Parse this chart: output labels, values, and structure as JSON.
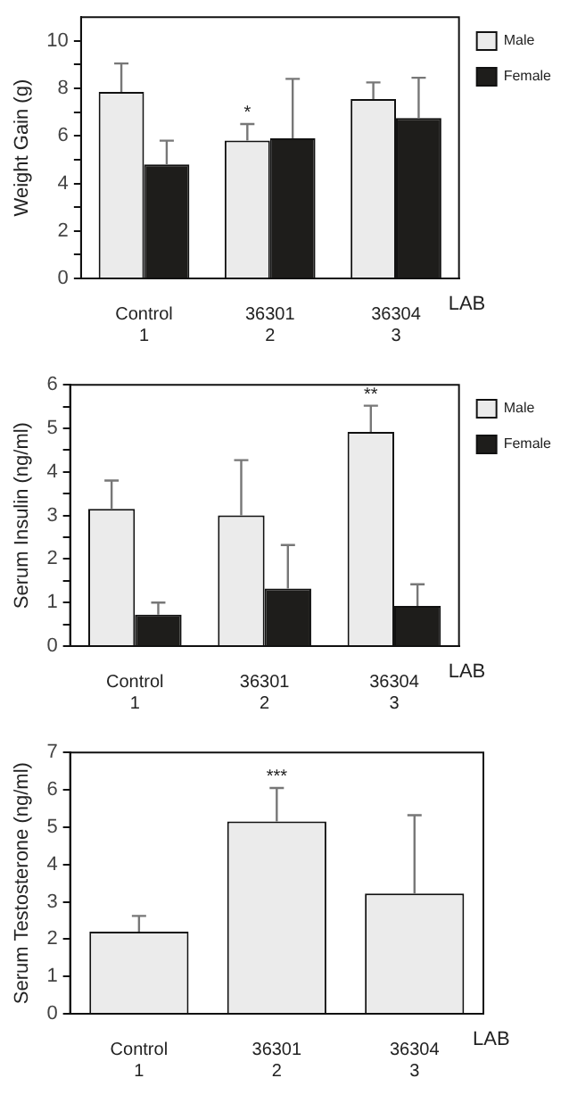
{
  "chart_data": [
    {
      "type": "bar",
      "ylabel": "Weight Gain (g)",
      "xlabel": "LAB",
      "categories": [
        "Control\n1",
        "36301\n2",
        "36304\n3"
      ],
      "series": [
        {
          "name": "Male",
          "color": "#ebebeb",
          "values": [
            7.85,
            5.8,
            7.55
          ],
          "errors": [
            1.2,
            0.7,
            0.7
          ],
          "value_labels": [
            null,
            "*",
            null
          ]
        },
        {
          "name": "Female",
          "color": "#1e1d1b",
          "values": [
            4.8,
            5.9,
            6.75
          ],
          "errors": [
            1.0,
            2.5,
            1.7
          ]
        }
      ],
      "ylim": [
        0,
        11
      ],
      "yticks": [
        0,
        {
          "value": 1,
          "label": null
        },
        2,
        {
          "value": 3,
          "label": null
        },
        4,
        {
          "value": 5,
          "label": null
        },
        6,
        {
          "value": 7,
          "label": null
        },
        8,
        {
          "value": 9,
          "label": null
        },
        10
      ],
      "legend": "right",
      "grid": false
    },
    {
      "type": "bar",
      "ylabel": "Serum Insulin (ng/ml)",
      "xlabel": "LAB",
      "categories": [
        "Control\n1",
        "36301\n2",
        "36304\n3"
      ],
      "series": [
        {
          "name": "Male",
          "color": "#ebebeb",
          "values": [
            3.15,
            3.0,
            4.92
          ],
          "errors": [
            0.65,
            1.27,
            0.6
          ],
          "value_labels": [
            null,
            null,
            "**"
          ]
        },
        {
          "name": "Female",
          "color": "#1e1d1b",
          "values": [
            0.72,
            1.32,
            0.92
          ],
          "errors": [
            0.28,
            1.0,
            0.5
          ]
        }
      ],
      "ylim": [
        0,
        6
      ],
      "yticks": [
        0,
        {
          "value": 0.5,
          "label": null
        },
        1,
        {
          "value": 1.5,
          "label": null
        },
        2,
        {
          "value": 2.5,
          "label": null
        },
        3,
        {
          "value": 3.5,
          "label": null
        },
        4,
        {
          "value": 4.5,
          "label": null
        },
        5,
        {
          "value": 5.5,
          "label": null
        },
        6
      ],
      "legend": "right",
      "grid": false
    },
    {
      "type": "bar",
      "ylabel": "Serum Testosterone (ng/ml)",
      "xlabel": "LAB",
      "categories": [
        "Control\n1",
        "36301\n2",
        "36304\n3"
      ],
      "series": [
        {
          "color": "#ebebeb",
          "values": [
            2.2,
            5.15,
            3.22
          ],
          "errors": [
            0.42,
            0.9,
            2.1
          ],
          "value_labels": [
            null,
            "***",
            null
          ]
        }
      ],
      "ylim": [
        0,
        7
      ],
      "yticks": [
        0,
        1,
        2,
        3,
        4,
        5,
        6,
        7
      ],
      "grid": false
    }
  ]
}
